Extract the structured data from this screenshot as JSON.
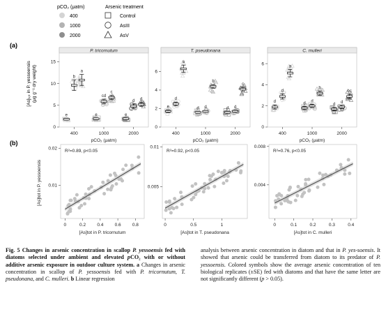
{
  "figure": {
    "panel_a_label": "(a)",
    "panel_b_label": "(b)",
    "legend": {
      "pco2_title": "pCO₂ (μatm)",
      "pco2_levels": [
        {
          "label": "400",
          "color": "#d4d4d4"
        },
        {
          "label": "1000",
          "color": "#b3b3b3"
        },
        {
          "label": "2000",
          "color": "#8e8e8e"
        }
      ],
      "treatment_title": "Arsenic treatment",
      "treatments": [
        {
          "label": "Control",
          "shape": "square"
        },
        {
          "label": "AsIII",
          "shape": "circle"
        },
        {
          "label": "AsV",
          "shape": "triangle"
        }
      ]
    },
    "panel_a_ylabel": "[As]ₜₒₜ in P. yessoensis",
    "panel_a_ylabel_units": "(μg g⁻¹ dry weight)",
    "panel_a_xlabel": "pCO₂ (μatm)"
  },
  "chart_data": [
    {
      "type": "scatter",
      "title": "P. tricornutum",
      "xlabel": "pCO₂ (μatm)",
      "ylabel": "[As]tot in P. yessoensis (μg g⁻¹ dry weight)",
      "categories": [
        "400",
        "1000",
        "2000"
      ],
      "ylim": [
        0,
        17
      ],
      "yticks": [
        0,
        5,
        10,
        15
      ],
      "series": [
        {
          "name": "Control",
          "means": [
            1.8,
            1.9,
            1.9
          ],
          "errors": [
            0.2,
            0.2,
            0.2
          ],
          "letters": [
            "e",
            "e",
            "e"
          ]
        },
        {
          "name": "AsIII",
          "means": [
            9.6,
            5.9,
            4.8
          ],
          "errors": [
            1.2,
            0.5,
            0.5
          ],
          "letters": [
            "b",
            "cd",
            "d"
          ]
        },
        {
          "name": "AsV",
          "means": [
            10.8,
            6.8,
            5.2
          ],
          "errors": [
            1.3,
            0.5,
            0.5
          ],
          "letters": [
            "a",
            "c",
            "d"
          ]
        }
      ]
    },
    {
      "type": "scatter",
      "title": "T. pseudonana",
      "xlabel": "pCO₂ (μatm)",
      "categories": [
        "400",
        "1000",
        "2000"
      ],
      "ylim": [
        0,
        8
      ],
      "yticks": [
        0,
        2,
        4,
        6
      ],
      "series": [
        {
          "name": "Control",
          "means": [
            1.7,
            1.6,
            1.6
          ],
          "errors": [
            0.15,
            0.1,
            0.1
          ],
          "letters": [
            "e",
            "d",
            "d"
          ]
        },
        {
          "name": "AsIII",
          "means": [
            2.5,
            1.7,
            1.7
          ],
          "errors": [
            0.2,
            0.1,
            0.1
          ],
          "letters": [
            "d",
            "d",
            "d"
          ]
        },
        {
          "name": "AsV",
          "means": [
            6.3,
            4.4,
            4.1
          ],
          "errors": [
            0.4,
            0.2,
            0.2
          ],
          "letters": [
            "a",
            "b",
            "c"
          ]
        }
      ]
    },
    {
      "type": "scatter",
      "title": "C. mulleri",
      "xlabel": "pCO₂ (μatm)",
      "categories": [
        "400",
        "1000",
        "2000"
      ],
      "ylim": [
        0,
        7
      ],
      "yticks": [
        0,
        2,
        4,
        6
      ],
      "series": [
        {
          "name": "Control",
          "means": [
            1.9,
            1.8,
            1.7
          ],
          "errors": [
            0.2,
            0.15,
            0.15
          ],
          "letters": [
            "d",
            "d",
            "d"
          ]
        },
        {
          "name": "AsIII",
          "means": [
            2.9,
            2.0,
            1.9
          ],
          "errors": [
            0.25,
            0.15,
            0.15
          ],
          "letters": [
            "d",
            "d",
            "d"
          ]
        },
        {
          "name": "AsV",
          "means": [
            5.1,
            3.2,
            2.9
          ],
          "errors": [
            0.35,
            0.2,
            0.2
          ],
          "letters": [
            "a",
            "b",
            "bc"
          ]
        }
      ]
    },
    {
      "type": "scatter",
      "xlabel": "[As]tot in P. tricornutum",
      "ylabel": "[As]tot in P. yessoensis",
      "annotation": "R²=0.89, p<0.05",
      "xlim": [
        -0.05,
        0.9
      ],
      "ylim": [
        0.001,
        0.021
      ],
      "xticks": [
        0,
        0.2,
        0.4,
        0.6,
        0.8
      ],
      "yticks": [
        0.01,
        0.02
      ],
      "fit_line": {
        "x": [
          0.0,
          0.86
        ],
        "y": [
          0.0035,
          0.0158
        ]
      }
    },
    {
      "type": "scatter",
      "xlabel": "[As]tot in T. pseudonana",
      "annotation": "R²=0.92, p<0.05",
      "xlim": [
        -0.05,
        1.45
      ],
      "ylim": [
        0.001,
        0.0103
      ],
      "xticks": [
        0,
        0.5,
        1
      ],
      "yticks": [
        0.005,
        0.01
      ],
      "fit_line": {
        "x": [
          0.0,
          1.38
        ],
        "y": [
          0.0023,
          0.0078
        ]
      }
    },
    {
      "type": "scatter",
      "xlabel": "[As]tot in C. mulleri",
      "annotation": "R²=0.76, p<0.05",
      "xlim": [
        -0.03,
        0.43
      ],
      "ylim": [
        0.0005,
        0.0082
      ],
      "xticks": [
        0,
        0.1,
        0.2,
        0.3,
        0.4
      ],
      "yticks": [
        0.004,
        0.008
      ],
      "fit_line": {
        "x": [
          0.0,
          0.41
        ],
        "y": [
          0.0021,
          0.0062
        ]
      }
    }
  ],
  "caption": {
    "left_bold": "Fig. 5 Changes in arsenic concentration in scallop ",
    "left_bold_italic": "P. yessoensis",
    "left_bold_2": " fed with diatoms selected under ambient and elevated ",
    "left_bold_italic_2": "p",
    "left_bold_3": "CO₂ with or without additive arsenic exposure in outdoor culture system. a",
    "left_rest_1": " Changes in arsenic concentration in scallop of ",
    "left_rest_italic_1": "P. yessoensis",
    "left_rest_2": " fed with ",
    "left_rest_italic_2": "P. tricornutum, T. pseudonana",
    "left_rest_3": ", and ",
    "left_rest_italic_3": "C. mulleri",
    "left_rest_4": ". ",
    "left_rest_bold_b": "b",
    "left_rest_5": " Linear regression",
    "right_1": "analysis between arsenic concentration in diatom and that in ",
    "right_italic_1": "P. yes-soensis",
    "right_2": ". It showed that arsenic could be transferred from diatom to its predator of ",
    "right_italic_2": "P. yessoensis",
    "right_3": ". Colored symbols show the average arsenic concentration of ten biological replicates (±SE) fed with diatoms and that have the same letter are not significantly different (",
    "right_italic_3": "p",
    "right_4": " > 0.05)."
  }
}
